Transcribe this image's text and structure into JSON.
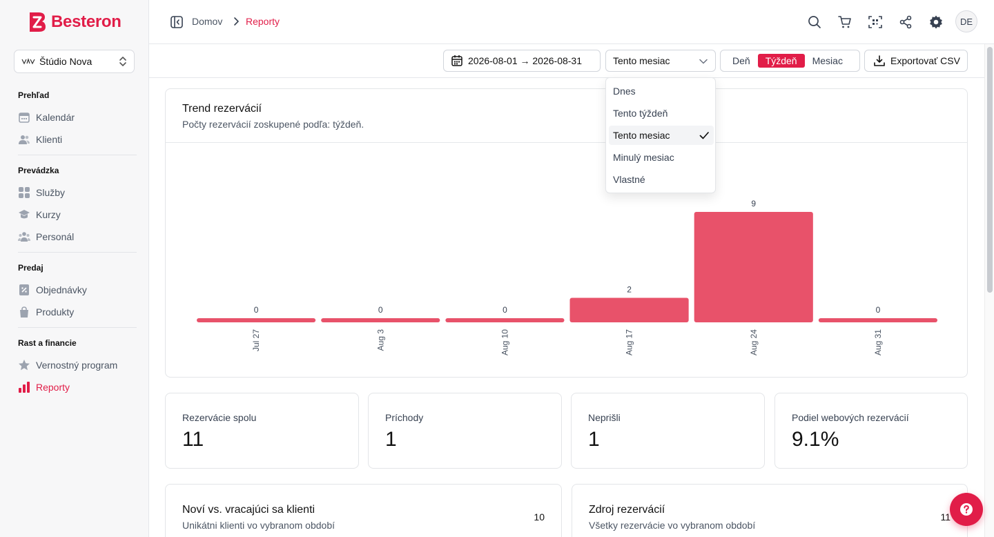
{
  "app": {
    "name": "Besteron",
    "brand_color": "#e11d48"
  },
  "workspace": {
    "name": "Štúdio Nova"
  },
  "sidebar": {
    "sections": [
      {
        "title": "Prehľad",
        "items": [
          {
            "label": "Kalendár",
            "icon": "calendar-icon"
          },
          {
            "label": "Klienti",
            "icon": "users-icon"
          }
        ]
      },
      {
        "title": "Prevádzka",
        "items": [
          {
            "label": "Služby",
            "icon": "grid-icon"
          },
          {
            "label": "Kurzy",
            "icon": "graduation-cap-icon"
          },
          {
            "label": "Personál",
            "icon": "team-icon"
          }
        ]
      },
      {
        "title": "Predaj",
        "items": [
          {
            "label": "Objednávky",
            "icon": "receipt-icon"
          },
          {
            "label": "Produkty",
            "icon": "shopping-bag-icon"
          }
        ]
      },
      {
        "title": "Rast a financie",
        "items": [
          {
            "label": "Vernostný program",
            "icon": "star-icon"
          },
          {
            "label": "Reporty",
            "icon": "bar-chart-icon",
            "active": true
          }
        ]
      }
    ]
  },
  "breadcrumb": {
    "home": "Domov",
    "current": "Reporty"
  },
  "header": {
    "avatar_initials": "DE"
  },
  "toolbar": {
    "date_range": "2026-08-01 → 2026-08-31",
    "period": "Tento mesiac",
    "granularity": [
      "Deň",
      "Týždeň",
      "Mesiac"
    ],
    "granularity_selected": "Týždeň",
    "export_label": "Exportovať CSV"
  },
  "period_dropdown": {
    "options": [
      "Dnes",
      "Tento týždeň",
      "Tento mesiac",
      "Minulý mesiac",
      "Vlastné"
    ],
    "selected": "Tento mesiac"
  },
  "trend_card": {
    "title": "Trend rezervácií",
    "subtitle": "Počty rezervácií zoskupené podľa: týždeň."
  },
  "chart_data": {
    "type": "bar",
    "categories": [
      "Jul 27",
      "Aug 3",
      "Aug 10",
      "Aug 17",
      "Aug 24",
      "Aug 31"
    ],
    "values": [
      0,
      0,
      0,
      2,
      9,
      0
    ],
    "ylim": [
      0,
      9
    ],
    "grid": false,
    "legend": "none",
    "bar_color": "#e8526a"
  },
  "metrics": [
    {
      "label": "Rezervácie spolu",
      "value": "11"
    },
    {
      "label": "Príchody",
      "value": "1"
    },
    {
      "label": "Neprišli",
      "value": "1"
    },
    {
      "label": "Podiel webových rezervácií",
      "value": "9.1%"
    }
  ],
  "bottom_cards": [
    {
      "title": "Noví vs. vracajúci sa klienti",
      "subtitle": "Unikátni klienti vo vybranom období",
      "count": "10"
    },
    {
      "title": "Zdroj rezervácií",
      "subtitle": "Všetky rezervácie vo vybranom období",
      "count": "11"
    }
  ]
}
